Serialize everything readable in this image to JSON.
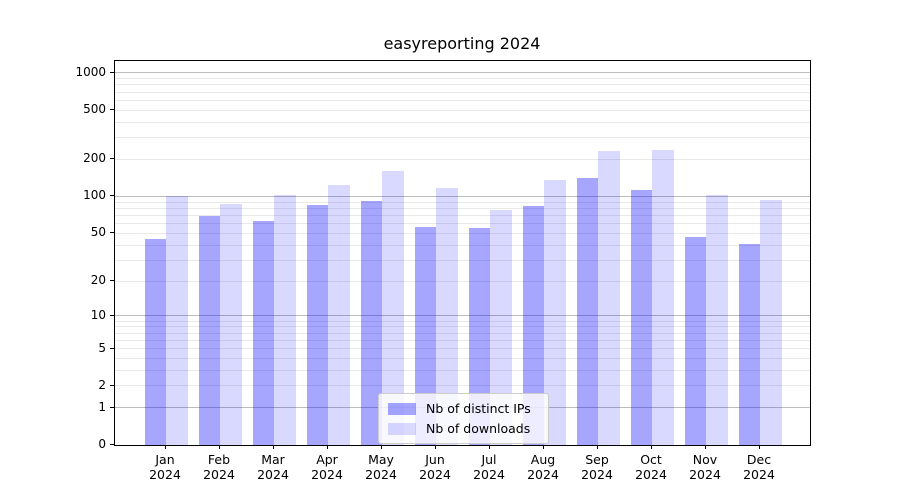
{
  "title": "easyreporting 2024",
  "chart_data": {
    "type": "bar",
    "title": "easyreporting 2024",
    "categories": [
      "Jan 2024",
      "Feb 2024",
      "Mar 2024",
      "Apr 2024",
      "May 2024",
      "Jun 2024",
      "Jul 2024",
      "Aug 2024",
      "Sep 2024",
      "Oct 2024",
      "Nov 2024",
      "Dec 2024"
    ],
    "series": [
      {
        "name": "Nb of distinct IPs",
        "values": [
          45,
          69,
          63,
          85,
          92,
          56,
          55,
          84,
          142,
          113,
          47,
          41
        ]
      },
      {
        "name": "Nb of downloads",
        "values": [
          100,
          87,
          102,
          123,
          160,
          118,
          78,
          137,
          236,
          237,
          103,
          93
        ]
      }
    ],
    "xlabel": "",
    "ylabel": "",
    "yscale": "log1p",
    "ylim": [
      0,
      1260
    ],
    "ytick_labels": [
      "1000",
      "500",
      "200",
      "100",
      "50",
      "20",
      "10",
      "5",
      "2",
      "1",
      "0"
    ],
    "ytick_values": [
      1000,
      500,
      200,
      100,
      50,
      20,
      10,
      5,
      2,
      1,
      0
    ],
    "grid": "horizontal, major and minor, drawn beneath translucent bars",
    "legend_position": "lower center",
    "bar_fills": [
      "rgba(0,0,255,0.35)",
      "rgba(0,0,255,0.15)"
    ],
    "bar_colors_flat": [
      "#a6a6ff",
      "#d9d9ff"
    ],
    "grid_major_color": "#bdbdbd",
    "grid_minor_color": "#e9e9e9"
  },
  "legend": {
    "items": [
      {
        "label": "Nb of distinct IPs"
      },
      {
        "label": "Nb of downloads"
      }
    ]
  }
}
